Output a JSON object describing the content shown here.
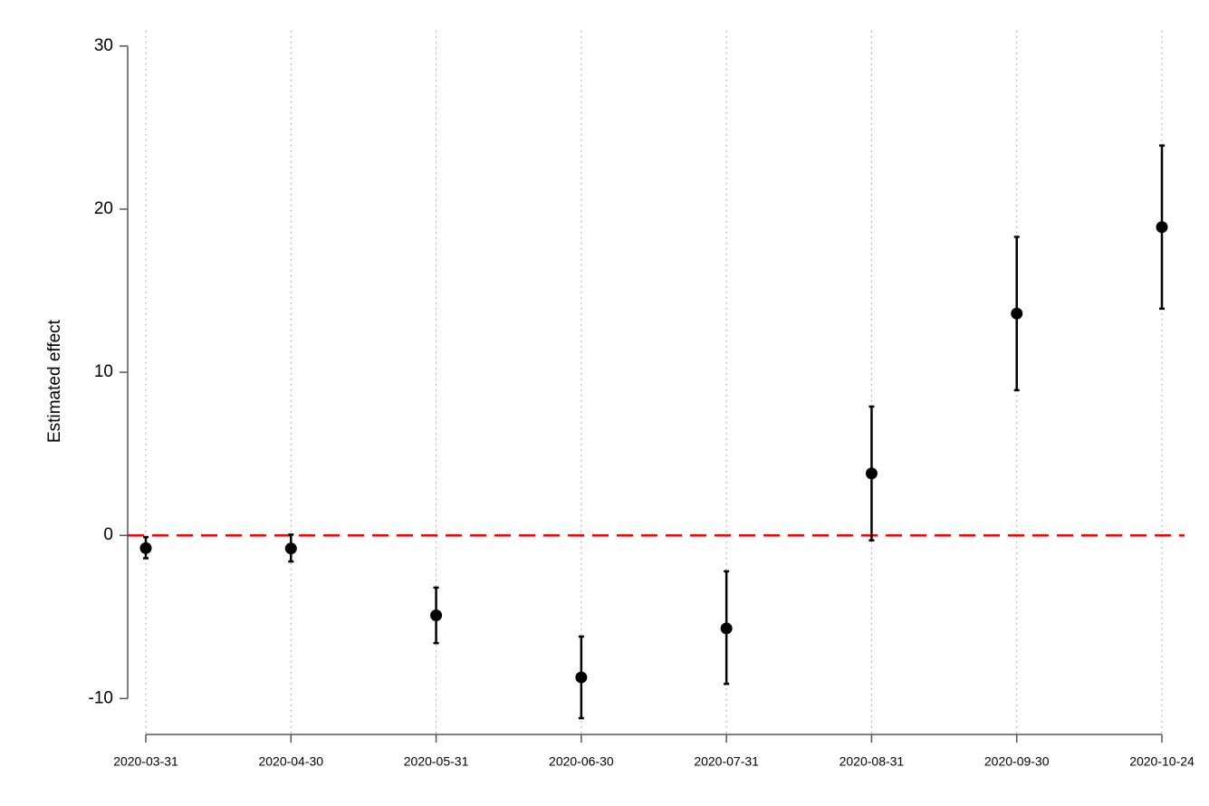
{
  "chart_data": {
    "type": "errorbar",
    "y_label": "Estimated effect",
    "categories": [
      "2020-03-31",
      "2020-04-30",
      "2020-05-31",
      "2020-06-30",
      "2020-07-31",
      "2020-08-31",
      "2020-09-30",
      "2020-10-24"
    ],
    "values": [
      -0.78,
      -0.8,
      -4.9,
      -8.7,
      -5.7,
      3.8,
      13.6,
      18.9
    ],
    "lower": [
      -1.4,
      -1.6,
      -6.6,
      -11.2,
      -9.1,
      -0.3,
      8.9,
      13.9
    ],
    "upper": [
      -0.1,
      0.05,
      -3.2,
      -6.2,
      -2.2,
      7.9,
      18.3,
      23.9
    ],
    "color": "#000000",
    "ylim": [
      -12.2,
      30.6
    ],
    "yticks": [
      -10,
      0,
      10,
      20,
      30
    ],
    "grid": true,
    "reference_line": {
      "value": 0,
      "color": "#ff0000"
    }
  }
}
